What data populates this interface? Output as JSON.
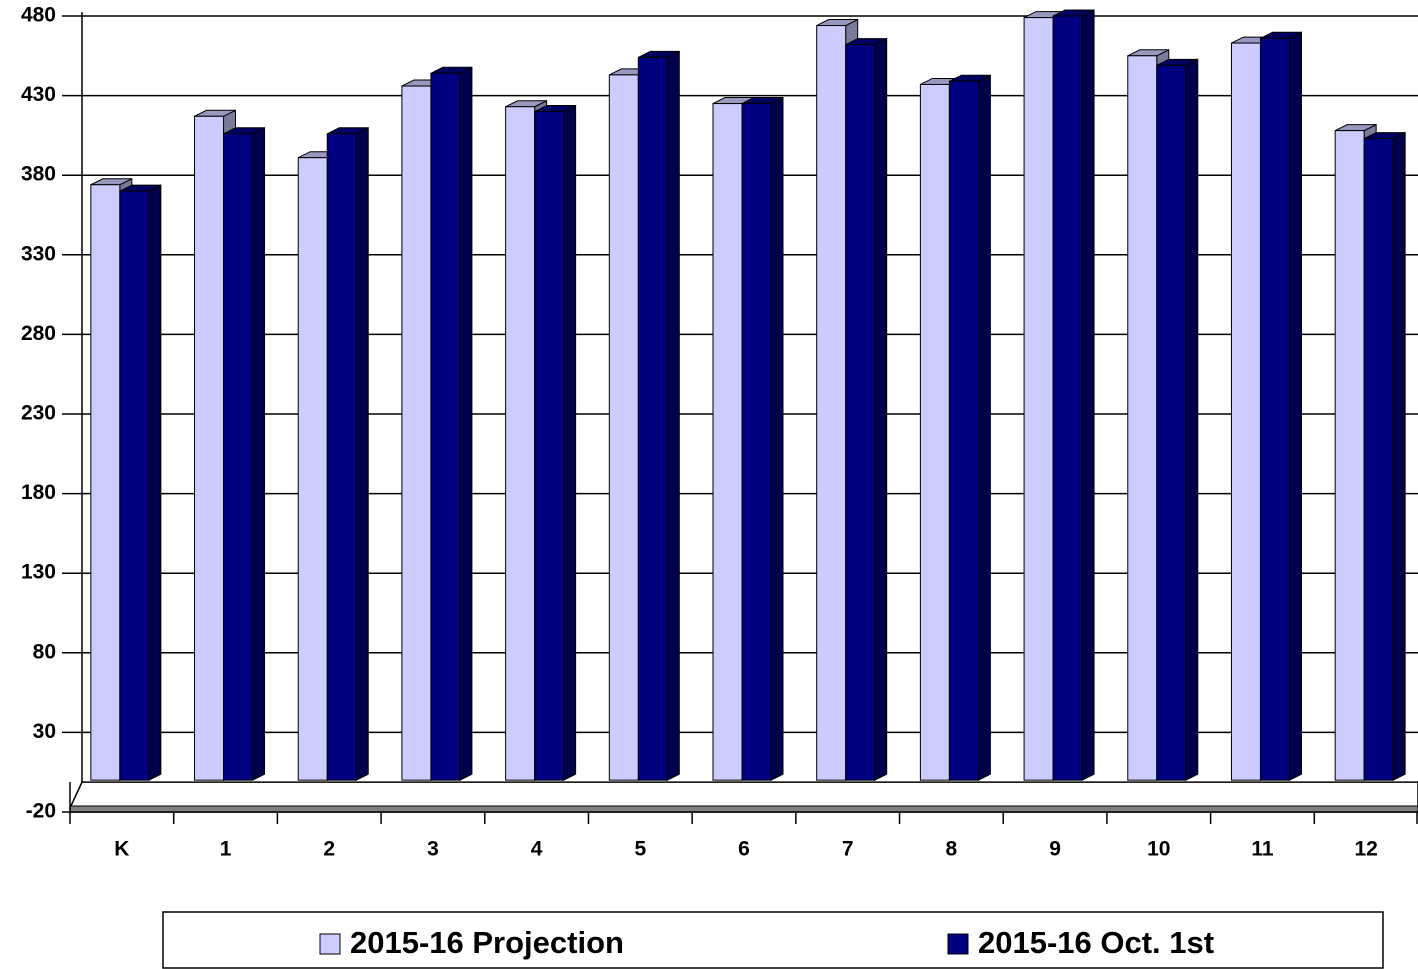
{
  "chart_data": {
    "type": "bar",
    "categories": [
      "K",
      "1",
      "2",
      "3",
      "4",
      "5",
      "6",
      "7",
      "8",
      "9",
      "10",
      "11",
      "12"
    ],
    "series": [
      {
        "name": "2015-16 Projection",
        "color": "#ccccff",
        "values": [
          374,
          417,
          391,
          436,
          423,
          443,
          425,
          474,
          437,
          479,
          455,
          463,
          408
        ]
      },
      {
        "name": "2015-16 Oct. 1st",
        "color": "#000080",
        "values": [
          370,
          406,
          406,
          444,
          420,
          454,
          425,
          462,
          439,
          480,
          449,
          466,
          403
        ]
      }
    ],
    "ylim": [
      -20,
      480
    ],
    "yticks": [
      -20,
      30,
      80,
      130,
      180,
      230,
      280,
      330,
      380,
      430,
      480
    ],
    "grid": true,
    "legend": "bottom"
  }
}
